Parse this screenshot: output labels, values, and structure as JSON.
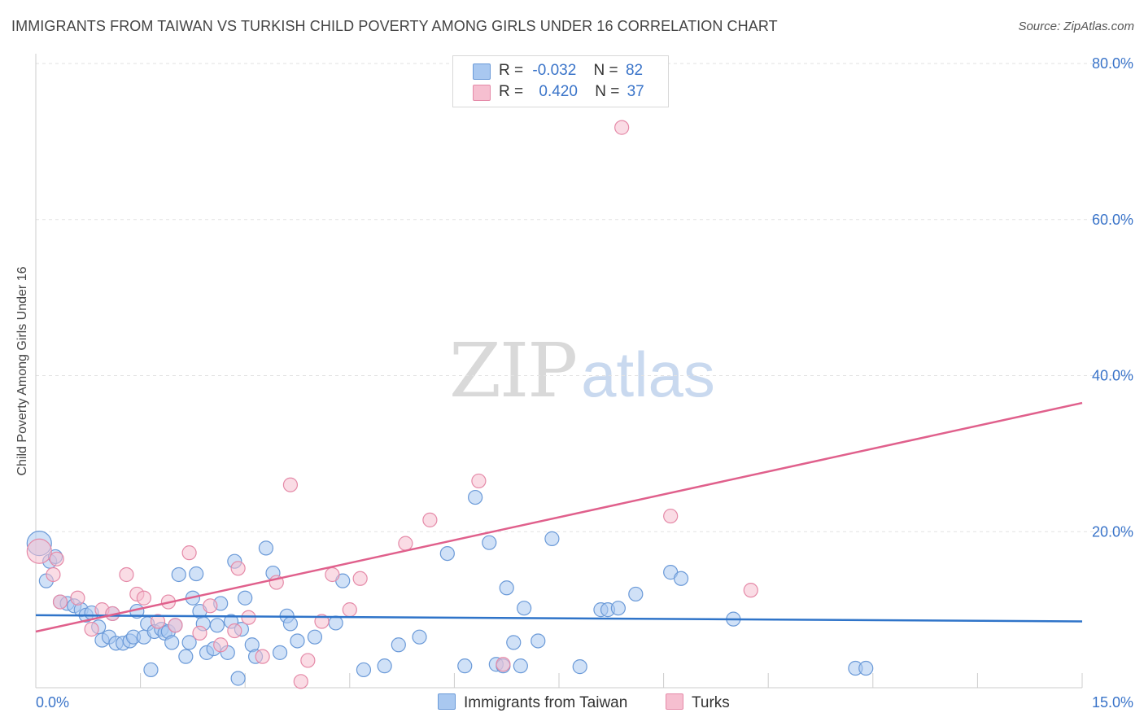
{
  "title": "IMMIGRANTS FROM TAIWAN VS TURKISH CHILD POVERTY AMONG GIRLS UNDER 16 CORRELATION CHART",
  "source": "Source: ZipAtlas.com",
  "watermark": {
    "zip": "ZIP",
    "atlas": "atlas"
  },
  "legend_top": {
    "rows": [
      {
        "r_label": "R =",
        "r_value": "-0.032",
        "n_label": "N =",
        "n_value": "82"
      },
      {
        "r_label": "R =",
        "r_value": "0.420",
        "n_label": "N =",
        "n_value": "37"
      }
    ]
  },
  "colors": {
    "blue_fill": "#a9c8f0",
    "blue_stroke": "#6b9ad8",
    "blue_line": "#2f74c9",
    "pink_fill": "#f6bfd0",
    "pink_stroke": "#e58aa8",
    "pink_line": "#e0608c",
    "grid": "#e2e2e2",
    "tick_label": "#3a74c9"
  },
  "chart_data": {
    "type": "scatter",
    "title": "IMMIGRANTS FROM TAIWAN VS TURKISH CHILD POVERTY AMONG GIRLS UNDER 16 CORRELATION CHART",
    "xlabel": "",
    "ylabel": "Child Poverty Among Girls Under 16",
    "xlim": [
      0,
      15
    ],
    "ylim": [
      0,
      80
    ],
    "x_tick_labels": [
      {
        "value": 0,
        "label": "0.0%"
      },
      {
        "value": 15,
        "label": "15.0%"
      }
    ],
    "y_tick_labels": [
      {
        "value": 20,
        "label": "20.0%"
      },
      {
        "value": 40,
        "label": "40.0%"
      },
      {
        "value": 60,
        "label": "60.0%"
      },
      {
        "value": 80,
        "label": "80.0%"
      }
    ],
    "grid": true,
    "legend_position": "bottom-center",
    "series": [
      {
        "name": "Immigrants from Taiwan",
        "color": "#a9c8f0",
        "trend": {
          "x": [
            0,
            15
          ],
          "y": [
            9.3,
            8.5
          ]
        },
        "points": [
          [
            0.05,
            18.5
          ],
          [
            0.15,
            13.7
          ],
          [
            0.2,
            16.2
          ],
          [
            0.28,
            16.8
          ],
          [
            0.35,
            11.0
          ],
          [
            0.45,
            10.8
          ],
          [
            0.55,
            10.5
          ],
          [
            0.65,
            10.0
          ],
          [
            0.72,
            9.3
          ],
          [
            0.8,
            9.6
          ],
          [
            0.95,
            6.1
          ],
          [
            1.05,
            6.5
          ],
          [
            1.1,
            9.5
          ],
          [
            1.15,
            5.7
          ],
          [
            1.25,
            5.7
          ],
          [
            1.35,
            6.0
          ],
          [
            1.4,
            6.5
          ],
          [
            1.45,
            9.8
          ],
          [
            1.55,
            6.5
          ],
          [
            1.6,
            8.2
          ],
          [
            1.65,
            2.3
          ],
          [
            1.7,
            7.2
          ],
          [
            1.8,
            7.5
          ],
          [
            1.85,
            7.0
          ],
          [
            1.9,
            7.2
          ],
          [
            1.95,
            5.8
          ],
          [
            2.0,
            8.0
          ],
          [
            2.05,
            14.5
          ],
          [
            2.15,
            4.0
          ],
          [
            2.2,
            5.8
          ],
          [
            2.25,
            11.5
          ],
          [
            2.3,
            14.6
          ],
          [
            2.35,
            9.8
          ],
          [
            2.4,
            8.2
          ],
          [
            2.45,
            4.5
          ],
          [
            2.55,
            5.0
          ],
          [
            2.6,
            8.0
          ],
          [
            2.65,
            10.8
          ],
          [
            2.75,
            4.5
          ],
          [
            2.8,
            8.5
          ],
          [
            2.85,
            16.2
          ],
          [
            2.9,
            1.2
          ],
          [
            2.95,
            7.5
          ],
          [
            3.0,
            11.5
          ],
          [
            3.1,
            5.5
          ],
          [
            3.15,
            4.0
          ],
          [
            3.3,
            17.9
          ],
          [
            3.4,
            14.7
          ],
          [
            3.5,
            4.5
          ],
          [
            3.6,
            9.2
          ],
          [
            3.65,
            8.2
          ],
          [
            4.0,
            6.5
          ],
          [
            4.3,
            8.3
          ],
          [
            4.4,
            13.7
          ],
          [
            4.7,
            2.3
          ],
          [
            5.0,
            2.8
          ],
          [
            5.5,
            6.5
          ],
          [
            5.9,
            17.2
          ],
          [
            6.15,
            2.8
          ],
          [
            6.3,
            24.4
          ],
          [
            6.5,
            18.6
          ],
          [
            6.6,
            3.0
          ],
          [
            6.7,
            2.8
          ],
          [
            6.75,
            12.8
          ],
          [
            6.85,
            5.8
          ],
          [
            6.95,
            2.8
          ],
          [
            7.0,
            10.2
          ],
          [
            7.2,
            6.0
          ],
          [
            7.4,
            19.1
          ],
          [
            7.8,
            2.7
          ],
          [
            8.1,
            10.0
          ],
          [
            8.2,
            10.0
          ],
          [
            8.35,
            10.2
          ],
          [
            8.6,
            12.0
          ],
          [
            9.1,
            14.8
          ],
          [
            9.25,
            14.0
          ],
          [
            11.75,
            2.5
          ],
          [
            11.9,
            2.5
          ],
          [
            10.0,
            8.8
          ],
          [
            5.2,
            5.5
          ],
          [
            3.75,
            6.0
          ],
          [
            0.9,
            7.8
          ]
        ]
      },
      {
        "name": "Turks",
        "color": "#f6bfd0",
        "trend": {
          "x": [
            0,
            15
          ],
          "y": [
            7.2,
            36.5
          ]
        },
        "points": [
          [
            0.05,
            17.5
          ],
          [
            0.25,
            14.5
          ],
          [
            0.3,
            16.5
          ],
          [
            0.35,
            11.0
          ],
          [
            0.6,
            11.5
          ],
          [
            0.8,
            7.5
          ],
          [
            0.95,
            10.0
          ],
          [
            1.1,
            9.5
          ],
          [
            1.3,
            14.5
          ],
          [
            1.45,
            12.0
          ],
          [
            1.55,
            11.5
          ],
          [
            1.75,
            8.5
          ],
          [
            1.9,
            11.0
          ],
          [
            2.0,
            8.0
          ],
          [
            2.2,
            17.3
          ],
          [
            2.35,
            7.0
          ],
          [
            2.5,
            10.5
          ],
          [
            2.65,
            5.5
          ],
          [
            2.85,
            7.3
          ],
          [
            2.9,
            15.3
          ],
          [
            3.05,
            9.0
          ],
          [
            3.25,
            4.0
          ],
          [
            3.45,
            13.5
          ],
          [
            3.65,
            26.0
          ],
          [
            3.8,
            0.8
          ],
          [
            3.9,
            3.5
          ],
          [
            4.25,
            14.5
          ],
          [
            4.5,
            10.0
          ],
          [
            4.65,
            14.0
          ],
          [
            5.3,
            18.5
          ],
          [
            5.65,
            21.5
          ],
          [
            6.35,
            26.5
          ],
          [
            6.7,
            3.0
          ],
          [
            8.4,
            71.8
          ],
          [
            9.1,
            22.0
          ],
          [
            10.25,
            12.5
          ],
          [
            4.1,
            8.5
          ]
        ]
      }
    ]
  },
  "bottom_legend": [
    {
      "label": "Immigrants from Taiwan"
    },
    {
      "label": "Turks"
    }
  ]
}
